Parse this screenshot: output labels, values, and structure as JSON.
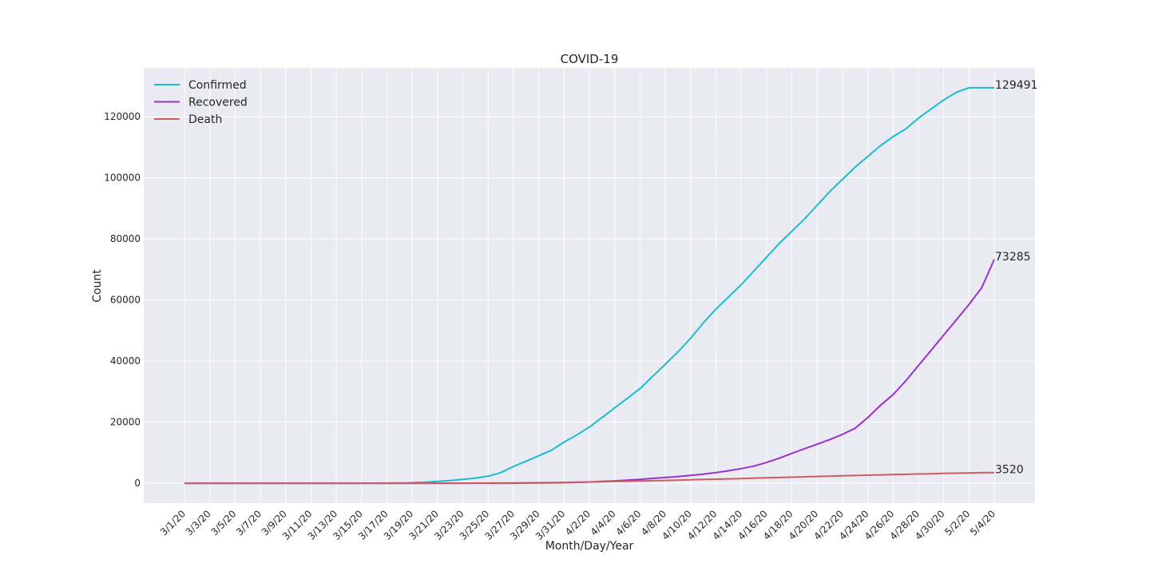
{
  "chart_data": {
    "type": "line",
    "title": "COVID-19",
    "xlabel": "Month/Day/Year",
    "ylabel": "Count",
    "ylim": [
      -6500,
      136000
    ],
    "yticks": [
      0,
      20000,
      40000,
      60000,
      80000,
      100000,
      120000
    ],
    "grid": true,
    "legend_position": "top-left",
    "x": [
      "3/1/20",
      "3/2/20",
      "3/3/20",
      "3/4/20",
      "3/5/20",
      "3/6/20",
      "3/7/20",
      "3/8/20",
      "3/9/20",
      "3/10/20",
      "3/11/20",
      "3/12/20",
      "3/13/20",
      "3/14/20",
      "3/15/20",
      "3/16/20",
      "3/17/20",
      "3/18/20",
      "3/19/20",
      "3/20/20",
      "3/21/20",
      "3/22/20",
      "3/23/20",
      "3/24/20",
      "3/25/20",
      "3/26/20",
      "3/27/20",
      "3/28/20",
      "3/29/20",
      "3/30/20",
      "3/31/20",
      "4/1/20",
      "4/2/20",
      "4/3/20",
      "4/4/20",
      "4/5/20",
      "4/6/20",
      "4/7/20",
      "4/8/20",
      "4/9/20",
      "4/10/20",
      "4/11/20",
      "4/12/20",
      "4/13/20",
      "4/14/20",
      "4/15/20",
      "4/16/20",
      "4/17/20",
      "4/18/20",
      "4/19/20",
      "4/20/20",
      "4/21/20",
      "4/22/20",
      "4/23/20",
      "4/24/20",
      "4/25/20",
      "4/26/20",
      "4/27/20",
      "4/28/20",
      "4/29/20",
      "4/30/20",
      "5/1/20",
      "5/2/20",
      "5/3/20",
      "5/4/20"
    ],
    "x_tick_labels": [
      "3/1/20",
      "3/3/20",
      "3/5/20",
      "3/7/20",
      "3/9/20",
      "3/11/20",
      "3/13/20",
      "3/15/20",
      "3/17/20",
      "3/19/20",
      "3/21/20",
      "3/23/20",
      "3/25/20",
      "3/27/20",
      "3/29/20",
      "3/31/20",
      "4/2/20",
      "4/4/20",
      "4/6/20",
      "4/8/20",
      "4/10/20",
      "4/12/20",
      "4/14/20",
      "4/16/20",
      "4/18/20",
      "4/20/20",
      "4/22/20",
      "4/24/20",
      "4/26/20",
      "4/28/20",
      "4/30/20",
      "5/2/20",
      "5/4/20"
    ],
    "series": [
      {
        "name": "Confirmed",
        "color": "#17becf",
        "end_label": "129491",
        "values": [
          0,
          0,
          0,
          0,
          0,
          0,
          0,
          0,
          0,
          0,
          0,
          0,
          0,
          10,
          20,
          30,
          60,
          100,
          200,
          350,
          600,
          900,
          1300,
          1700,
          2300,
          3500,
          5500,
          7200,
          9000,
          10800,
          13500,
          15800,
          18400,
          21500,
          24700,
          27800,
          31000,
          35000,
          39000,
          43000,
          47500,
          52500,
          57000,
          61000,
          65000,
          69500,
          74000,
          78500,
          82500,
          86500,
          91000,
          95500,
          99500,
          103500,
          107000,
          110500,
          113500,
          116000,
          119500,
          122500,
          125500,
          128000,
          129491,
          129491,
          129491
        ],
        "values_note": ""
      },
      {
        "name": "Recovered",
        "color": "#9932cc",
        "end_label": "73285",
        "values": [
          0,
          0,
          0,
          0,
          0,
          0,
          0,
          0,
          0,
          0,
          0,
          0,
          0,
          0,
          0,
          0,
          0,
          0,
          0,
          0,
          0,
          0,
          0,
          0,
          0,
          0,
          10,
          50,
          100,
          150,
          200,
          300,
          400,
          600,
          800,
          1000,
          1300,
          1600,
          1900,
          2200,
          2600,
          3000,
          3500,
          4100,
          4800,
          5600,
          6800,
          8200,
          9800,
          11300,
          12800,
          14300,
          16000,
          18000,
          21500,
          25500,
          29000,
          33500,
          38500,
          43500,
          48500,
          53500,
          58500,
          64000,
          73285
        ]
      },
      {
        "name": "Death",
        "color": "#cd5c5c",
        "end_label": "3520",
        "values": [
          0,
          0,
          0,
          0,
          0,
          0,
          0,
          0,
          0,
          0,
          0,
          0,
          0,
          0,
          0,
          0,
          0,
          0,
          0,
          5,
          10,
          20,
          30,
          40,
          60,
          80,
          110,
          150,
          200,
          250,
          300,
          360,
          420,
          500,
          580,
          660,
          750,
          840,
          930,
          1030,
          1130,
          1230,
          1340,
          1450,
          1560,
          1670,
          1780,
          1890,
          2000,
          2110,
          2220,
          2330,
          2440,
          2550,
          2650,
          2750,
          2850,
          2950,
          3040,
          3130,
          3220,
          3300,
          3380,
          3450,
          3520
        ]
      }
    ]
  }
}
